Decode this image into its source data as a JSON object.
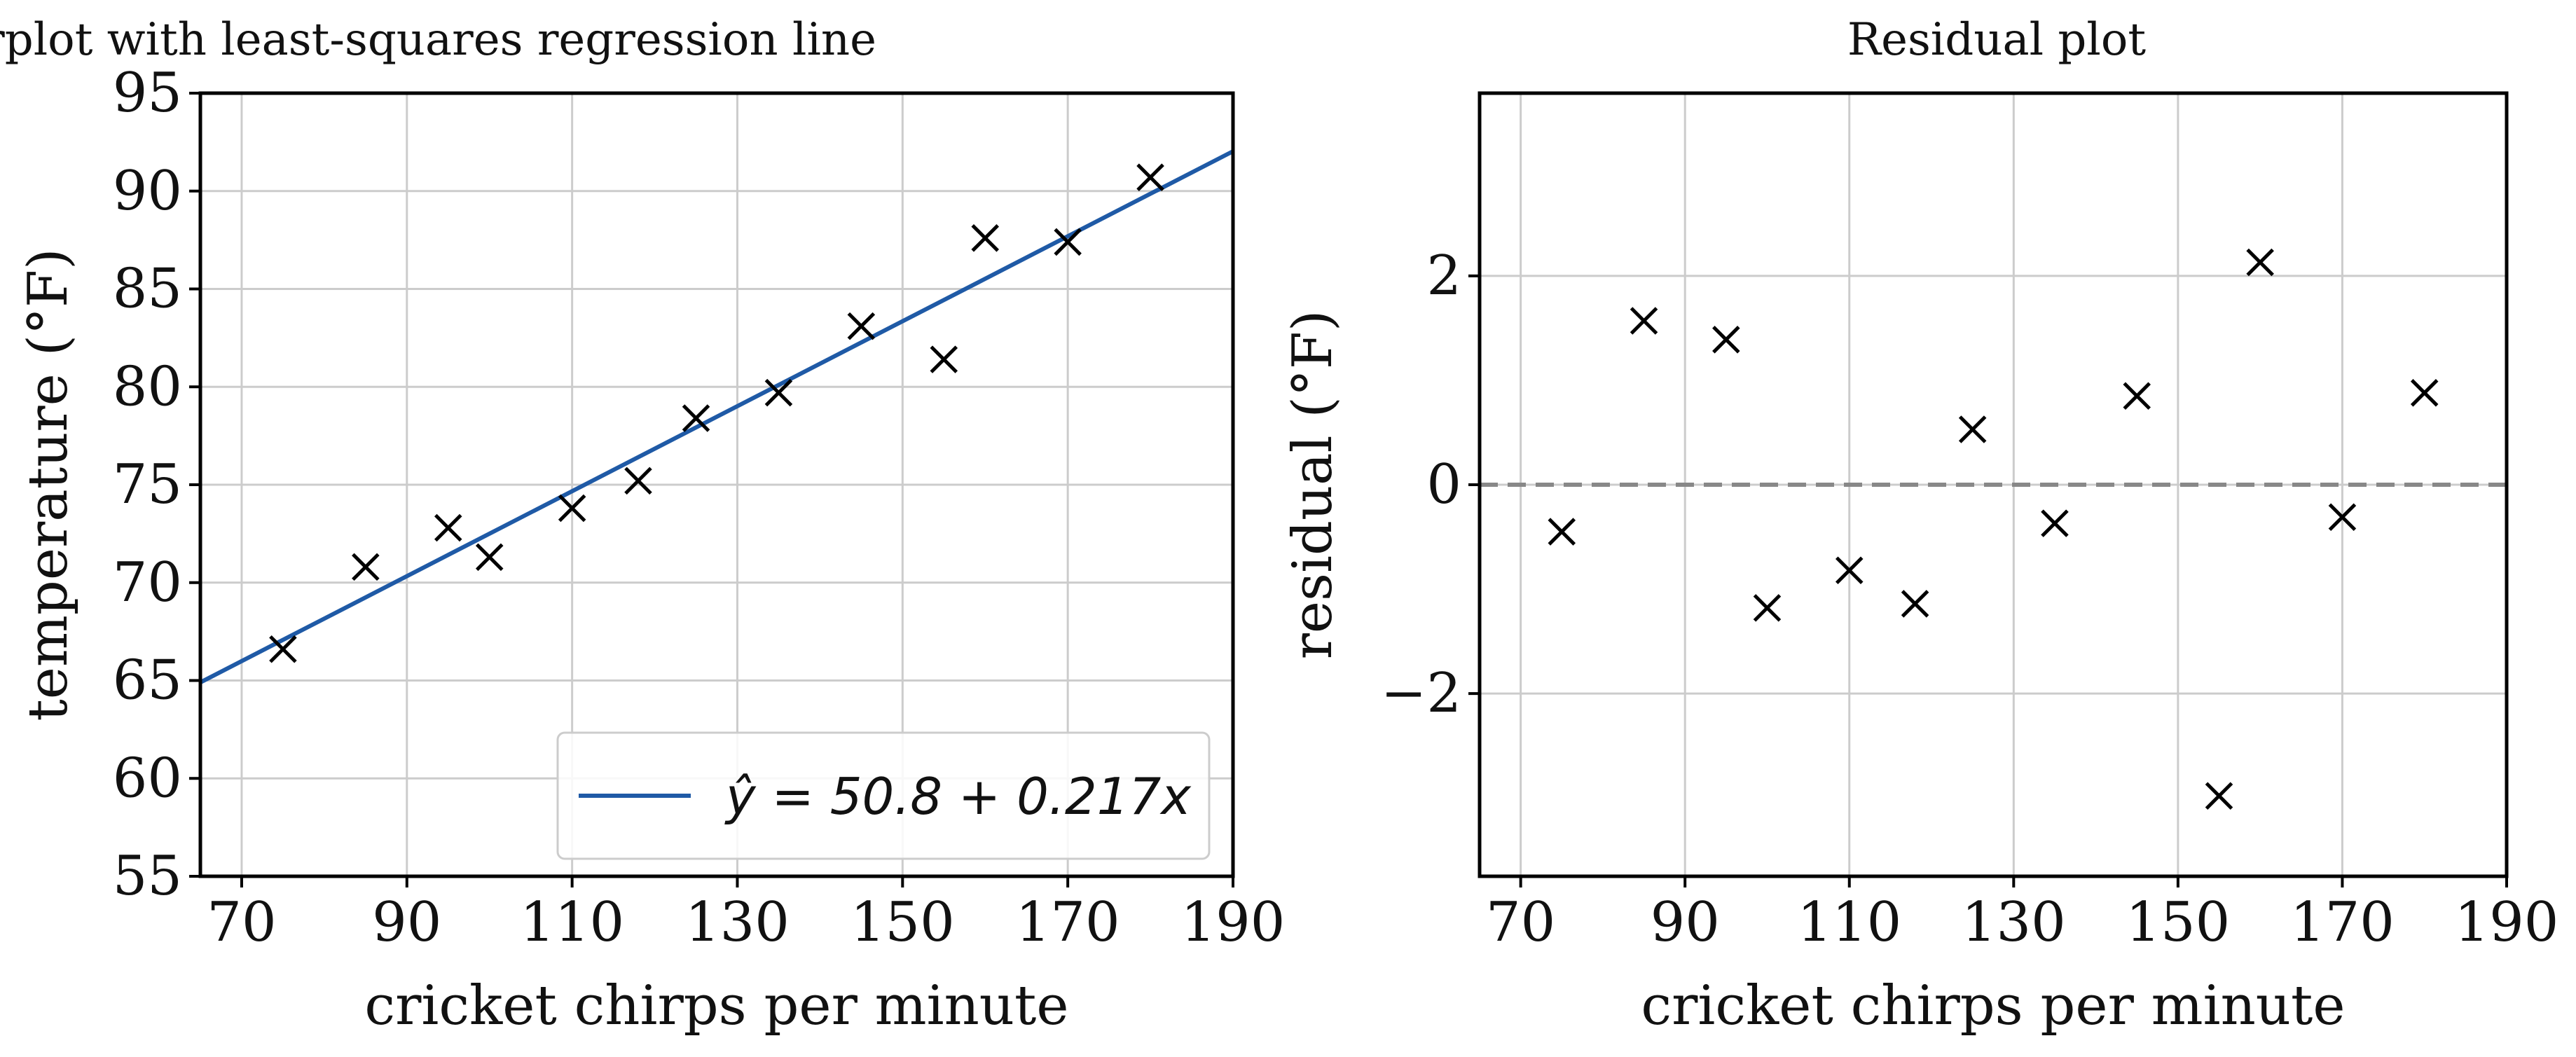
{
  "chart_data": [
    {
      "type": "scatter",
      "title": "Scatterplot with least-squares regression line",
      "xlabel": "cricket chirps per minute",
      "ylabel": "temperature (°F)",
      "xlim": [
        65,
        190
      ],
      "ylim": [
        55,
        95
      ],
      "xticks": [
        70,
        90,
        110,
        130,
        150,
        170,
        190
      ],
      "yticks": [
        55,
        60,
        65,
        70,
        75,
        80,
        85,
        90,
        95
      ],
      "grid": true,
      "series": [
        {
          "marker": "x",
          "color": "#000000",
          "x": [
            75,
            85,
            95,
            100,
            110,
            118,
            125,
            135,
            145,
            155,
            160,
            170,
            180
          ],
          "y": [
            66.6,
            70.8,
            72.8,
            71.3,
            73.8,
            75.2,
            78.4,
            79.7,
            83.1,
            81.4,
            87.6,
            87.4,
            90.7
          ]
        }
      ],
      "regression_line": {
        "intercept": 50.8,
        "slope": 0.217,
        "color": "#1f5aa6",
        "legend_label": "ŷ = 50.8 + 0.217x",
        "legend_loc": "lower-right"
      }
    },
    {
      "type": "scatter",
      "title": "Residual plot",
      "xlabel": "cricket chirps per minute",
      "ylabel": "residual (°F)",
      "xlim": [
        65,
        190
      ],
      "ylim": [
        -3.75,
        3.75
      ],
      "xticks": [
        70,
        90,
        110,
        130,
        150,
        170,
        190
      ],
      "yticks": [
        -2,
        0,
        2
      ],
      "ytick_labels": [
        "−2",
        "0",
        "2"
      ],
      "grid": true,
      "zero_line": {
        "y": 0,
        "style": "dashed",
        "color": "#888888"
      },
      "series": [
        {
          "marker": "x",
          "color": "#000000",
          "x": [
            75,
            85,
            95,
            100,
            110,
            118,
            125,
            135,
            145,
            155,
            160,
            170,
            180
          ],
          "y": [
            -0.45,
            1.57,
            1.39,
            -1.18,
            -0.82,
            -1.14,
            0.53,
            -0.37,
            0.85,
            -2.98,
            2.13,
            -0.31,
            0.88
          ]
        }
      ]
    }
  ]
}
